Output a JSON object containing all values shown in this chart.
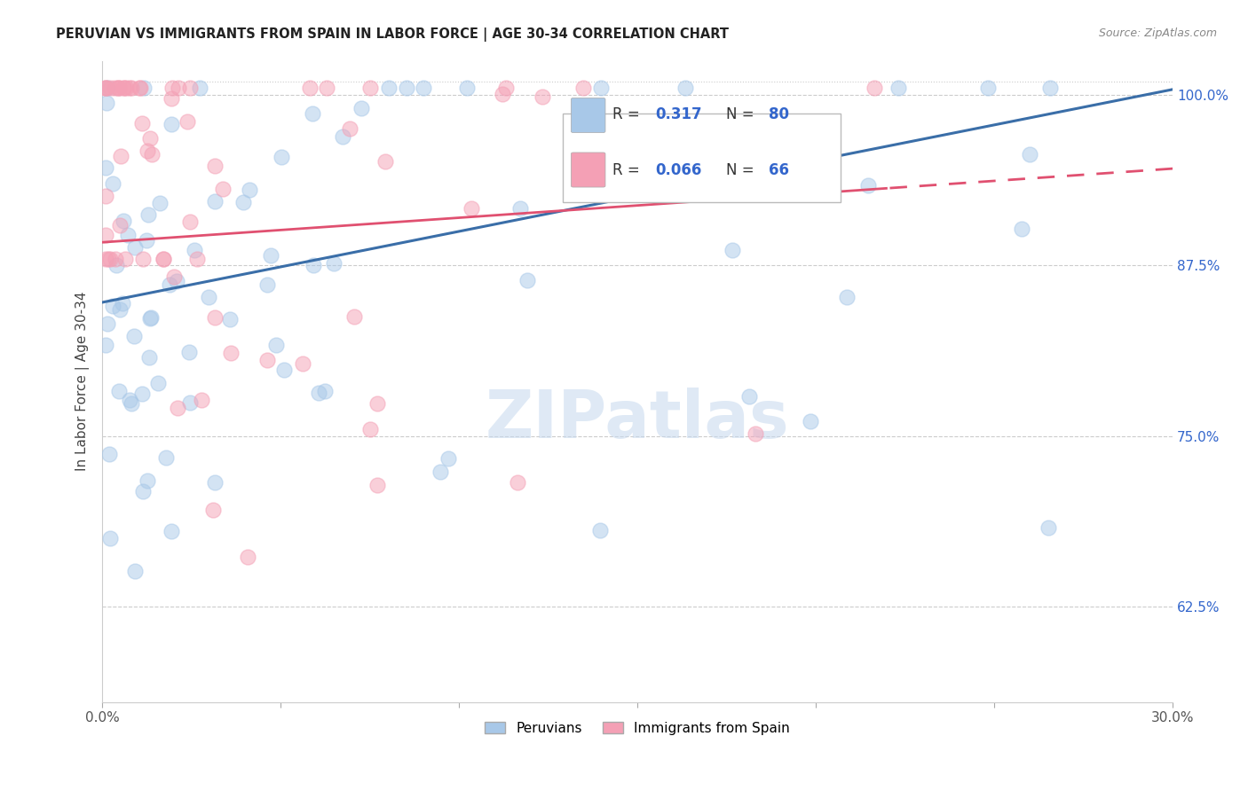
{
  "title": "PERUVIAN VS IMMIGRANTS FROM SPAIN IN LABOR FORCE | AGE 30-34 CORRELATION CHART",
  "source": "Source: ZipAtlas.com",
  "ylabel": "In Labor Force | Age 30-34",
  "xlim": [
    0.0,
    0.3
  ],
  "ylim": [
    0.555,
    1.025
  ],
  "yticks": [
    0.625,
    0.75,
    0.875,
    1.0
  ],
  "ytick_labels": [
    "62.5%",
    "75.0%",
    "87.5%",
    "100.0%"
  ],
  "xticks": [
    0.0,
    0.05,
    0.1,
    0.15,
    0.2,
    0.25,
    0.3
  ],
  "xtick_labels": [
    "0.0%",
    "",
    "",
    "",
    "",
    "",
    "30.0%"
  ],
  "blue_color": "#A8C8E8",
  "pink_color": "#F4A0B5",
  "blue_line_color": "#3A6EA8",
  "pink_line_color": "#E05070",
  "R_blue": 0.317,
  "N_blue": 80,
  "R_pink": 0.066,
  "N_pink": 66,
  "watermark": "ZIPatlas",
  "axis_label_color": "#3366CC",
  "title_color": "#222222",
  "source_color": "#888888",
  "grid_color": "#cccccc",
  "blue_line_intercept": 0.848,
  "blue_line_slope": 0.52,
  "pink_line_intercept": 0.892,
  "pink_line_slope": 0.18
}
